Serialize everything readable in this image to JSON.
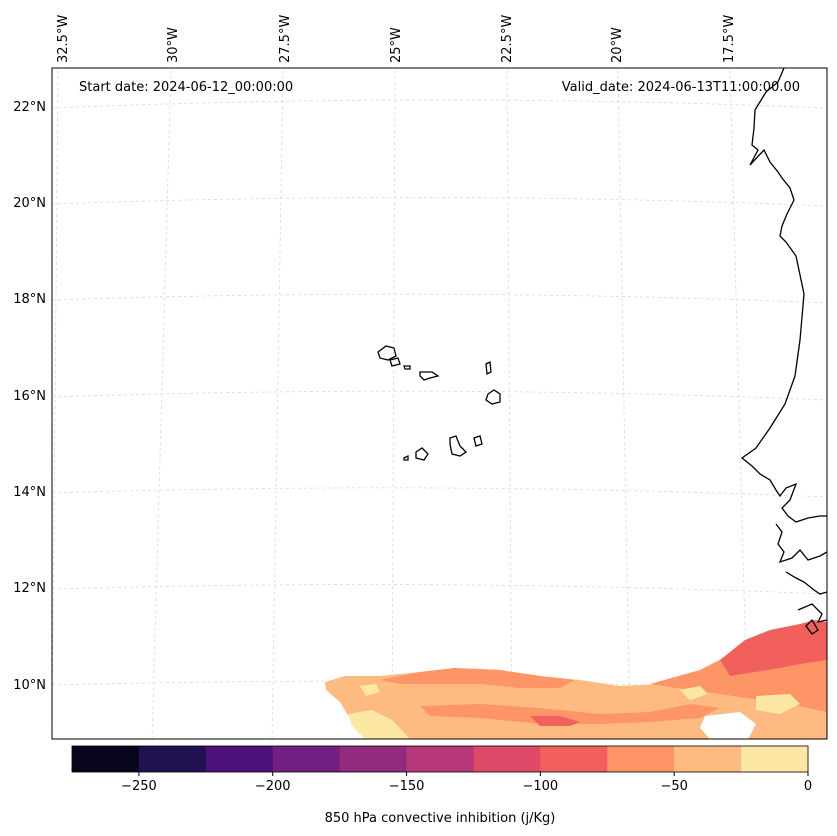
{
  "map": {
    "start_label": "Start date: 2024-06-12_00:00:00",
    "valid_label": "Valid_date: 2024-06-13T11:00:00.00",
    "top_lon_labels": [
      "32.5°W",
      "30°W",
      "27.5°W",
      "25°W",
      "22.5°W",
      "20°W",
      "17.5°W"
    ],
    "lat_labels": [
      "22°N",
      "20°N",
      "18°N",
      "16°N",
      "14°N",
      "12°N",
      "10°N"
    ],
    "colors": {
      "coast": "#000000",
      "grid": "#d9d9d9"
    }
  },
  "colorbar": {
    "label": "850 hPa convective inhibition (j/Kg)",
    "tick_labels": [
      "−250",
      "−200",
      "−150",
      "−100",
      "−50",
      "0"
    ],
    "range": [
      -275,
      0
    ],
    "bins": [
      {
        "from": -275,
        "to": -250,
        "color": "#07061c"
      },
      {
        "from": -250,
        "to": -225,
        "color": "#221150"
      },
      {
        "from": -225,
        "to": -200,
        "color": "#4e117b"
      },
      {
        "from": -200,
        "to": -175,
        "color": "#721f81"
      },
      {
        "from": -175,
        "to": -150,
        "color": "#922a7d"
      },
      {
        "from": -150,
        "to": -125,
        "color": "#b73779"
      },
      {
        "from": -125,
        "to": -100,
        "color": "#de4968"
      },
      {
        "from": -100,
        "to": -75,
        "color": "#f1605d"
      },
      {
        "from": -75,
        "to": -50,
        "color": "#fd9567"
      },
      {
        "from": -50,
        "to": -25,
        "color": "#febb81"
      },
      {
        "from": -25,
        "to": 0,
        "color": "#fde7a5"
      }
    ]
  }
}
